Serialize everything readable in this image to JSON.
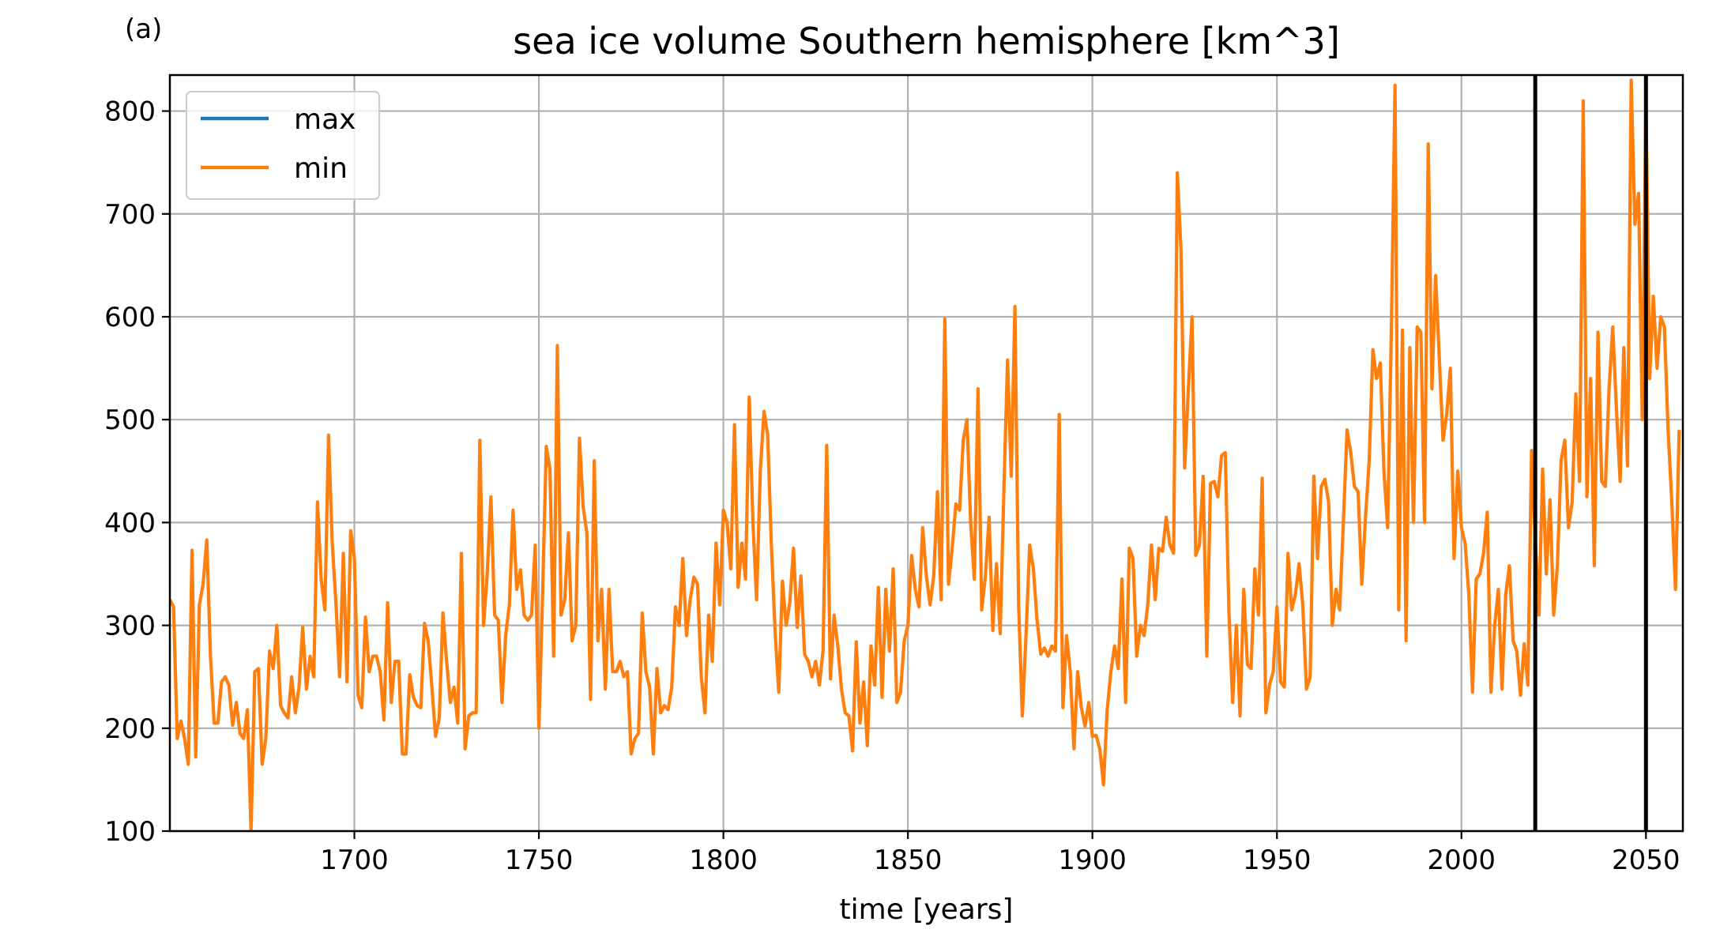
{
  "panel_label": "(a)",
  "colors": {
    "max": "#1f77b4",
    "min": "#ff7f0e",
    "grid": "#b0b0b0",
    "vline": "#000000"
  },
  "chart_data": {
    "type": "line",
    "title": "sea ice volume Southern hemisphere [km^3]",
    "xlabel": "time [years]",
    "ylabel": "",
    "xlim": [
      1650,
      2060
    ],
    "ylim": [
      100,
      835
    ],
    "xticks": [
      1700,
      1750,
      1800,
      1850,
      1900,
      1950,
      2000,
      2050
    ],
    "yticks": [
      100,
      200,
      300,
      400,
      500,
      600,
      700,
      800
    ],
    "grid": true,
    "legend_position": "upper-left",
    "vertical_lines": [
      2020,
      2050
    ],
    "series": [
      {
        "name": "max",
        "values": []
      },
      {
        "name": "min",
        "x_start": 1650,
        "x_step": 1,
        "values": [
          325,
          318,
          190,
          207,
          190,
          165,
          373,
          172,
          320,
          340,
          383,
          270,
          205,
          205,
          245,
          250,
          242,
          203,
          225,
          195,
          190,
          218,
          100,
          255,
          258,
          165,
          190,
          275,
          258,
          300,
          222,
          215,
          210,
          250,
          215,
          240,
          298,
          238,
          270,
          250,
          420,
          345,
          315,
          485,
          380,
          322,
          250,
          370,
          245,
          392,
          365,
          232,
          220,
          308,
          255,
          270,
          270,
          255,
          208,
          322,
          225,
          265,
          265,
          175,
          175,
          252,
          230,
          222,
          220,
          302,
          285,
          240,
          192,
          210,
          312,
          265,
          225,
          240,
          205,
          370,
          180,
          212,
          215,
          215,
          480,
          300,
          350,
          425,
          310,
          305,
          225,
          290,
          320,
          412,
          335,
          354,
          310,
          305,
          310,
          378,
          200,
          330,
          474,
          452,
          270,
          572,
          310,
          325,
          390,
          285,
          300,
          482,
          415,
          390,
          228,
          460,
          285,
          335,
          238,
          335,
          255,
          255,
          265,
          250,
          255,
          175,
          190,
          195,
          312,
          255,
          240,
          175,
          258,
          215,
          222,
          218,
          240,
          318,
          300,
          365,
          290,
          325,
          347,
          340,
          250,
          215,
          310,
          265,
          380,
          320,
          412,
          400,
          355,
          495,
          337,
          380,
          345,
          522,
          400,
          325,
          450,
          508,
          485,
          378,
          295,
          235,
          343,
          300,
          322,
          375,
          298,
          348,
          272,
          265,
          250,
          265,
          242,
          275,
          475,
          248,
          310,
          280,
          238,
          215,
          212,
          178,
          284,
          205,
          245,
          183,
          280,
          242,
          337,
          230,
          335,
          275,
          355,
          225,
          235,
          285,
          300,
          368,
          335,
          318,
          395,
          348,
          320,
          348,
          430,
          325,
          598,
          340,
          375,
          418,
          412,
          480,
          500,
          400,
          345,
          530,
          315,
          348,
          405,
          295,
          360,
          292,
          430,
          558,
          445,
          610,
          320,
          212,
          290,
          378,
          355,
          305,
          272,
          278,
          270,
          280,
          275,
          505,
          220,
          290,
          255,
          180,
          255,
          220,
          202,
          225,
          192,
          193,
          180,
          145,
          218,
          255,
          280,
          258,
          345,
          225,
          375,
          365,
          270,
          300,
          290,
          320,
          378,
          325,
          375,
          372,
          405,
          378,
          370,
          740,
          665,
          453,
          530,
          600,
          368,
          378,
          445,
          270,
          438,
          440,
          425,
          465,
          468,
          312,
          225,
          300,
          212,
          335,
          262,
          258,
          355,
          310,
          443,
          215,
          242,
          255,
          318,
          245,
          240,
          370,
          315,
          330,
          360,
          320,
          238,
          250,
          445,
          365,
          435,
          442,
          420,
          300,
          335,
          315,
          400,
          490,
          468,
          435,
          430,
          340,
          405,
          460,
          568,
          540,
          555,
          450,
          395,
          585,
          825,
          315,
          587,
          285,
          570,
          400,
          590,
          585,
          400,
          768,
          530,
          640,
          560,
          480,
          505,
          550,
          365,
          450,
          395,
          380,
          330,
          235,
          345,
          350,
          370,
          410,
          235,
          300,
          335,
          238,
          330,
          358,
          285,
          275,
          232,
          282,
          242,
          470,
          385,
          310,
          452,
          350,
          422,
          310,
          358,
          460,
          480,
          395,
          420,
          525,
          440,
          810,
          425,
          540,
          358,
          585,
          440,
          435,
          530,
          590,
          510,
          440,
          570,
          455,
          830,
          690,
          720,
          500,
          810,
          540,
          620,
          550,
          600,
          590,
          490,
          420,
          335,
          490
        ]
      }
    ]
  }
}
